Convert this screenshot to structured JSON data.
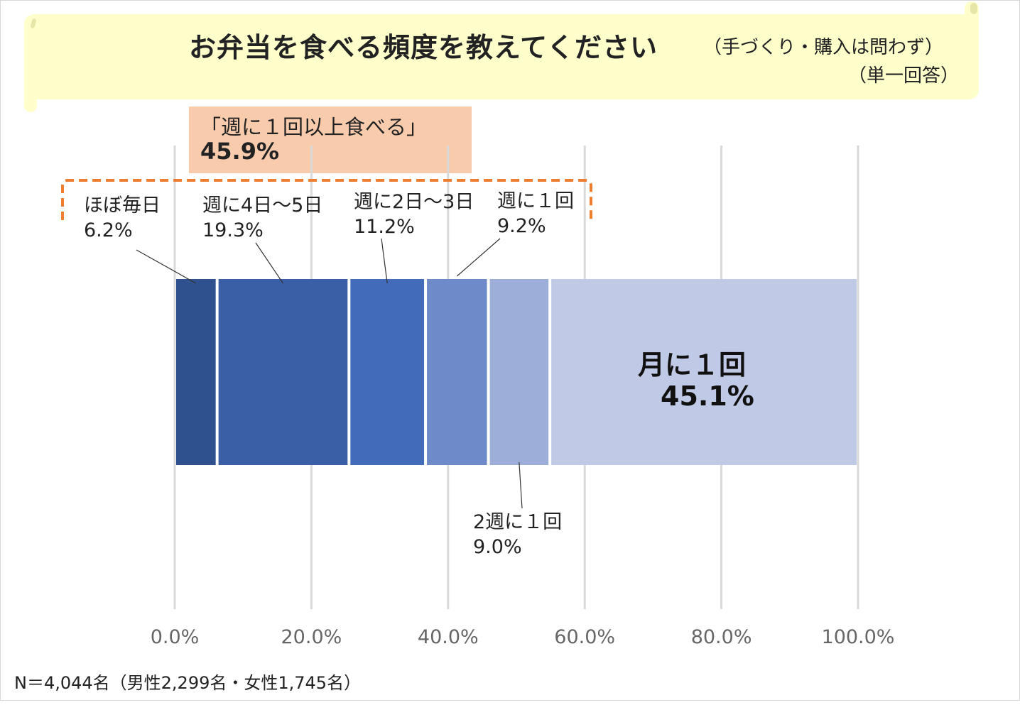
{
  "title": "お弁当を食べる頻度を教えてください",
  "title_note": "（手づくり・購入は問わず）",
  "title_note2": "（単一回答）",
  "summary": {
    "label": "「週に１回以上食べる」",
    "value": "45.9%"
  },
  "footnote": "N＝4,044名（男性2,299名・女性1,745名）",
  "colors": {
    "banner": "#ffffcc",
    "summary_box": "#f8cbad",
    "bracket": "#ed7d31",
    "gridline": "#d9d9d9"
  },
  "chart_data": {
    "type": "bar",
    "orientation": "horizontal",
    "stacked": true,
    "xlim": [
      0,
      100
    ],
    "x_ticks": [
      "0.0%",
      "20.0%",
      "40.0%",
      "60.0%",
      "80.0%",
      "100.0%"
    ],
    "grid": true,
    "series": [
      {
        "name": "ほぼ毎日",
        "value": 6.2,
        "label": "6.2%",
        "color": "#2f528f"
      },
      {
        "name": "週に4日～5日",
        "value": 19.3,
        "label": "19.3%",
        "color": "#3a5fa6"
      },
      {
        "name": "週に2日～3日",
        "value": 11.2,
        "label": "11.2%",
        "color": "#426cb9"
      },
      {
        "name": "週に１回",
        "value": 9.2,
        "label": "9.2%",
        "color": "#6e8ac8"
      },
      {
        "name": "2週に１回",
        "value": 9.0,
        "label": "9.0%",
        "color": "#9daed8"
      },
      {
        "name": "月に１回",
        "value": 45.1,
        "label": "45.1%",
        "color": "#c0cae6"
      }
    ]
  }
}
